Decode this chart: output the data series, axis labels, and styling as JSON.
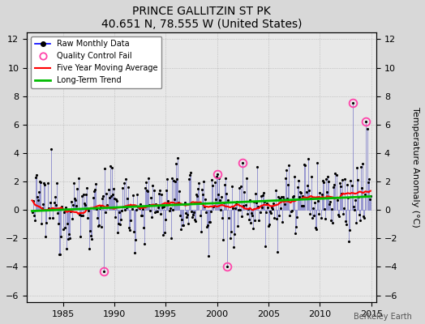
{
  "title": "PRINCE GALLITZIN ST PK",
  "subtitle": "40.651 N, 78.555 W (United States)",
  "ylabel": "Temperature Anomaly (°C)",
  "credit": "Berkeley Earth",
  "xlim": [
    1981.5,
    2015.5
  ],
  "ylim": [
    -6.5,
    12.5
  ],
  "yticks": [
    -6,
    -4,
    -2,
    0,
    2,
    4,
    6,
    8,
    10,
    12
  ],
  "xticks": [
    1985,
    1990,
    1995,
    2000,
    2005,
    2010,
    2015
  ],
  "bg_color": "#d8d8d8",
  "plot_bg_color": "#e8e8e8",
  "stem_color": "#8888cc",
  "dot_color": "#000000",
  "seed": 12345,
  "num_months": 396,
  "start_year": 1982.0,
  "qc_indices": [
    84,
    228,
    216,
    246,
    390
  ],
  "qc_values": [
    -4.3,
    -4.0,
    2.5,
    3.3,
    6.2
  ],
  "big_spike_index": 374,
  "big_spike_value": 7.5
}
